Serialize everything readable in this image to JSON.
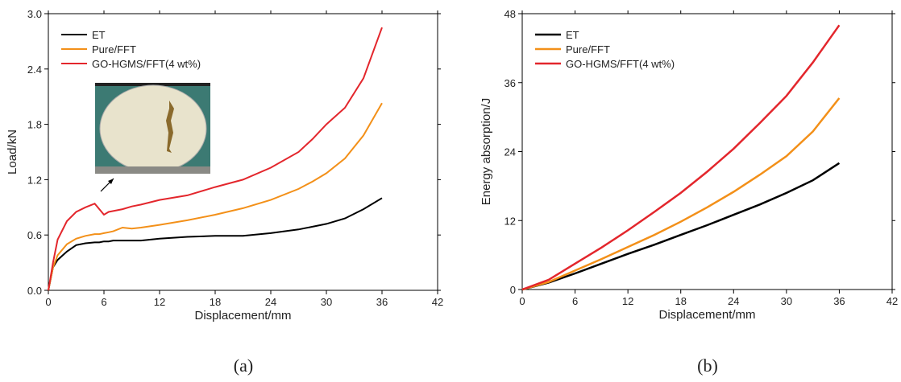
{
  "chart_data": [
    {
      "type": "line",
      "caption": "(a)",
      "x_label": "Displacement/mm",
      "y_label": "Load/kN",
      "legend": "upper left",
      "x": [
        0,
        0.5,
        1,
        2,
        3,
        4,
        5,
        5.5,
        6,
        6.5,
        7,
        8,
        9,
        10,
        12,
        15,
        18,
        21,
        24,
        27,
        28.5,
        30,
        32,
        34,
        36
      ],
      "series": [
        {
          "name": "ET",
          "color": "#000000",
          "values": [
            0,
            0.25,
            0.33,
            0.42,
            0.49,
            0.51,
            0.52,
            0.52,
            0.53,
            0.53,
            0.54,
            0.54,
            0.54,
            0.54,
            0.56,
            0.58,
            0.59,
            0.59,
            0.62,
            0.66,
            0.69,
            0.72,
            0.78,
            0.88,
            1.0
          ]
        },
        {
          "name": "Pure/FFT",
          "color": "#f39019",
          "values": [
            0,
            0.25,
            0.38,
            0.5,
            0.56,
            0.59,
            0.61,
            0.61,
            0.62,
            0.63,
            0.64,
            0.68,
            0.67,
            0.68,
            0.71,
            0.76,
            0.82,
            0.89,
            0.98,
            1.1,
            1.18,
            1.27,
            1.43,
            1.68,
            2.03
          ]
        },
        {
          "name": "GO-HGMS/FFT(4 wt%)",
          "color": "#e3262c",
          "values": [
            0,
            0.3,
            0.55,
            0.75,
            0.85,
            0.9,
            0.94,
            0.88,
            0.82,
            0.85,
            0.86,
            0.88,
            0.91,
            0.93,
            0.98,
            1.03,
            1.12,
            1.2,
            1.33,
            1.5,
            1.64,
            1.8,
            1.98,
            2.3,
            2.85
          ]
        }
      ],
      "xlim": [
        0,
        42
      ],
      "xticks": [
        0,
        6,
        12,
        18,
        24,
        30,
        36,
        42
      ],
      "ylim": [
        0,
        3
      ],
      "yticks": [
        {
          "value": 0,
          "label": "0.0"
        },
        0.6,
        1.2,
        1.8,
        2.4,
        {
          "value": 3,
          "label": "3.0"
        }
      ]
    },
    {
      "type": "line",
      "caption": "(b)",
      "x_label": "Displacement/mm",
      "y_label": "Energy absorption/J",
      "legend": "upper left",
      "x": [
        0,
        3,
        6,
        9,
        12,
        15,
        18,
        21,
        24,
        27,
        30,
        33,
        36
      ],
      "series": [
        {
          "name": "ET",
          "color": "#000000",
          "values": [
            0,
            1.2,
            2.8,
            4.5,
            6.2,
            7.8,
            9.5,
            11.2,
            13,
            14.8,
            16.8,
            19,
            22
          ]
        },
        {
          "name": "Pure/FFT",
          "color": "#f39019",
          "values": [
            0,
            1.3,
            3.3,
            5.3,
            7.4,
            9.5,
            11.8,
            14.3,
            17,
            20,
            23.2,
            27.5,
            33.3
          ]
        },
        {
          "name": "GO-HGMS/FFT(4 wt%)",
          "color": "#e3262c",
          "values": [
            0,
            1.7,
            4.5,
            7.3,
            10.3,
            13.5,
            16.8,
            20.5,
            24.5,
            29,
            33.7,
            39.5,
            46
          ]
        }
      ],
      "xlim": [
        0,
        42
      ],
      "xticks": [
        0,
        6,
        12,
        18,
        24,
        30,
        36,
        42
      ],
      "ylim": [
        0,
        48
      ],
      "yticks": [
        0,
        12,
        24,
        36,
        48
      ]
    }
  ]
}
